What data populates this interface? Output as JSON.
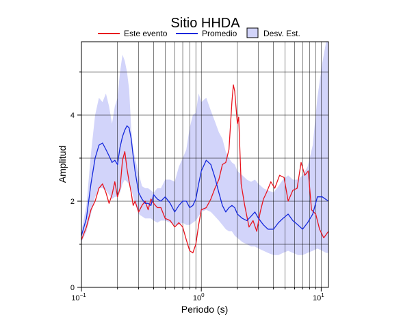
{
  "chart_data": {
    "type": "line",
    "title": "Sitio HHDA",
    "xlabel": "Periodo (s)",
    "ylabel": "Amplitud",
    "x_scale": "log",
    "xlim": [
      0.1,
      11.5
    ],
    "ylim": [
      0,
      5.7
    ],
    "grid": true,
    "legend_position": "top",
    "y_ticks": [
      {
        "value": 0,
        "label": "0"
      },
      {
        "value": 2,
        "label": "2"
      },
      {
        "value": 4,
        "label": "4"
      }
    ],
    "x_ticks": [
      {
        "value": 0.1,
        "base": "10",
        "exp": "−1"
      },
      {
        "value": 1,
        "base": "10",
        "exp": "0"
      },
      {
        "value": 10,
        "base": "10",
        "exp": "1"
      }
    ],
    "legend": {
      "event": "Este evento",
      "mean": "Promedio",
      "std": "Desv. Est."
    },
    "colors": {
      "event": "#e8141e",
      "mean": "#1428dc",
      "std_fill": "#d2d4fa",
      "grid": "#000000"
    },
    "series": [
      {
        "name": "Este evento",
        "x": [
          0.1,
          0.11,
          0.12,
          0.13,
          0.14,
          0.15,
          0.16,
          0.17,
          0.18,
          0.19,
          0.2,
          0.21,
          0.22,
          0.23,
          0.24,
          0.25,
          0.26,
          0.27,
          0.28,
          0.3,
          0.32,
          0.34,
          0.36,
          0.38,
          0.4,
          0.43,
          0.46,
          0.5,
          0.55,
          0.6,
          0.65,
          0.7,
          0.75,
          0.8,
          0.85,
          0.9,
          0.95,
          1.0,
          1.1,
          1.2,
          1.3,
          1.4,
          1.5,
          1.6,
          1.7,
          1.8,
          1.85,
          1.9,
          2.0,
          2.05,
          2.15,
          2.3,
          2.5,
          2.7,
          2.9,
          3.1,
          3.3,
          3.5,
          3.8,
          4.1,
          4.5,
          4.9,
          5.3,
          5.8,
          6.3,
          6.8,
          7.3,
          7.8,
          8.3,
          9.0,
          9.7,
          10.5,
          11.5
        ],
        "values": [
          1.1,
          1.4,
          1.8,
          2.0,
          2.3,
          2.4,
          2.2,
          1.95,
          2.15,
          2.45,
          2.1,
          2.3,
          2.95,
          3.15,
          2.75,
          2.45,
          2.2,
          1.9,
          2.0,
          1.75,
          1.9,
          2.0,
          1.8,
          2.05,
          1.95,
          1.85,
          1.85,
          1.6,
          1.55,
          1.4,
          1.5,
          1.4,
          1.1,
          0.85,
          0.8,
          1.0,
          1.45,
          1.8,
          1.85,
          2.05,
          2.3,
          2.5,
          2.85,
          2.9,
          3.2,
          4.3,
          4.7,
          4.55,
          3.8,
          3.95,
          2.4,
          1.9,
          1.4,
          1.55,
          1.3,
          1.75,
          2.05,
          2.2,
          2.45,
          2.3,
          2.6,
          2.55,
          2.0,
          2.25,
          2.3,
          2.9,
          2.6,
          2.7,
          1.8,
          1.7,
          1.35,
          1.15,
          1.3
        ]
      },
      {
        "name": "Promedio",
        "x": [
          0.1,
          0.11,
          0.12,
          0.13,
          0.14,
          0.15,
          0.16,
          0.17,
          0.18,
          0.19,
          0.2,
          0.21,
          0.22,
          0.23,
          0.24,
          0.25,
          0.26,
          0.27,
          0.28,
          0.3,
          0.32,
          0.34,
          0.36,
          0.38,
          0.4,
          0.43,
          0.46,
          0.5,
          0.55,
          0.6,
          0.65,
          0.7,
          0.75,
          0.8,
          0.85,
          0.9,
          0.95,
          1.0,
          1.1,
          1.2,
          1.3,
          1.4,
          1.5,
          1.6,
          1.7,
          1.8,
          1.9,
          2.0,
          2.2,
          2.4,
          2.6,
          2.8,
          3.0,
          3.3,
          3.6,
          4.0,
          4.4,
          4.8,
          5.3,
          5.8,
          6.4,
          7.0,
          7.7,
          8.5,
          9.3,
          10.2,
          11.5
        ],
        "values": [
          1.2,
          1.6,
          2.4,
          3.0,
          3.3,
          3.35,
          3.2,
          3.05,
          2.9,
          2.95,
          2.85,
          3.25,
          3.5,
          3.65,
          3.75,
          3.7,
          3.45,
          3.05,
          2.7,
          2.2,
          2.05,
          1.95,
          1.95,
          1.9,
          2.15,
          2.05,
          2.0,
          2.1,
          1.95,
          1.75,
          1.9,
          2.0,
          2.0,
          1.85,
          1.9,
          2.05,
          2.4,
          2.7,
          2.95,
          2.85,
          2.55,
          2.2,
          1.9,
          1.75,
          1.85,
          1.9,
          1.85,
          1.7,
          1.6,
          1.55,
          1.65,
          1.75,
          1.6,
          1.45,
          1.35,
          1.35,
          1.5,
          1.6,
          1.7,
          1.55,
          1.45,
          1.35,
          1.5,
          1.7,
          2.1,
          2.1,
          2.0
        ]
      }
    ],
    "band": {
      "name": "Desv. Est.",
      "x": [
        0.1,
        0.11,
        0.12,
        0.13,
        0.14,
        0.15,
        0.16,
        0.17,
        0.18,
        0.19,
        0.2,
        0.21,
        0.22,
        0.23,
        0.24,
        0.25,
        0.26,
        0.27,
        0.28,
        0.3,
        0.32,
        0.34,
        0.36,
        0.38,
        0.4,
        0.43,
        0.46,
        0.5,
        0.55,
        0.6,
        0.65,
        0.7,
        0.75,
        0.8,
        0.85,
        0.9,
        0.95,
        1.0,
        1.1,
        1.2,
        1.3,
        1.4,
        1.5,
        1.6,
        1.7,
        1.8,
        1.9,
        2.0,
        2.2,
        2.4,
        2.6,
        2.8,
        3.0,
        3.3,
        3.6,
        4.0,
        4.4,
        4.8,
        5.3,
        5.8,
        6.4,
        7.0,
        7.7,
        8.5,
        9.3,
        10.2,
        11.0,
        11.5
      ],
      "upper": [
        1.3,
        1.9,
        3.1,
        4.0,
        4.4,
        4.3,
        4.5,
        4.2,
        3.8,
        4.2,
        4.4,
        5.0,
        5.4,
        5.25,
        5.0,
        4.6,
        3.7,
        3.2,
        3.0,
        2.65,
        2.35,
        2.3,
        2.3,
        2.25,
        2.2,
        2.3,
        2.3,
        2.5,
        2.5,
        2.45,
        2.8,
        3.0,
        3.2,
        3.7,
        4.0,
        4.05,
        4.5,
        4.3,
        4.4,
        4.1,
        3.85,
        3.6,
        3.45,
        3.15,
        3.0,
        2.9,
        2.85,
        2.7,
        2.6,
        2.5,
        2.45,
        2.5,
        2.4,
        2.3,
        2.25,
        2.2,
        2.35,
        2.5,
        2.6,
        2.5,
        2.5,
        2.6,
        2.8,
        3.3,
        4.4,
        5.2,
        5.7,
        5.7
      ],
      "lower": [
        1.05,
        1.3,
        1.7,
        2.1,
        2.3,
        2.3,
        2.25,
        2.15,
        2.05,
        2.1,
        2.1,
        2.2,
        2.4,
        2.5,
        2.45,
        2.4,
        2.3,
        2.1,
        1.95,
        1.7,
        1.65,
        1.6,
        1.6,
        1.6,
        1.55,
        1.5,
        1.55,
        1.55,
        1.5,
        1.45,
        1.45,
        1.5,
        1.45,
        1.45,
        1.5,
        1.55,
        1.65,
        1.75,
        1.8,
        1.75,
        1.65,
        1.55,
        1.45,
        1.35,
        1.3,
        1.3,
        1.2,
        1.15,
        1.05,
        1.0,
        0.95,
        0.95,
        0.9,
        0.85,
        0.8,
        0.75,
        0.75,
        0.8,
        0.85,
        0.8,
        0.75,
        0.75,
        0.8,
        0.85,
        0.9,
        0.85,
        0.8,
        0.8
      ]
    }
  }
}
